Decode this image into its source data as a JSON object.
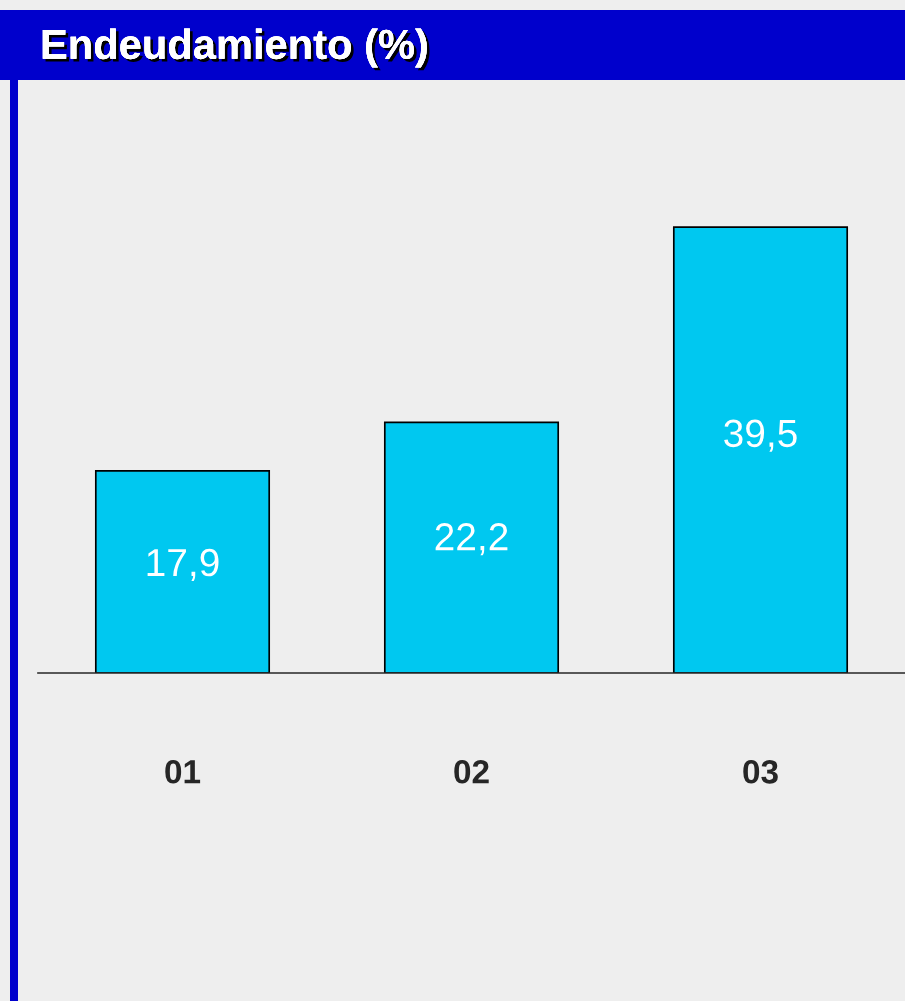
{
  "chart_data": {
    "type": "bar",
    "title": "Endeudamiento (%)",
    "categories": [
      "01",
      "02",
      "03"
    ],
    "values": [
      17.9,
      22.2,
      39.5
    ],
    "value_labels": [
      "17,9",
      "22,2",
      "39,5"
    ],
    "color": "#00c8f0",
    "grid": false,
    "legend": false
  }
}
